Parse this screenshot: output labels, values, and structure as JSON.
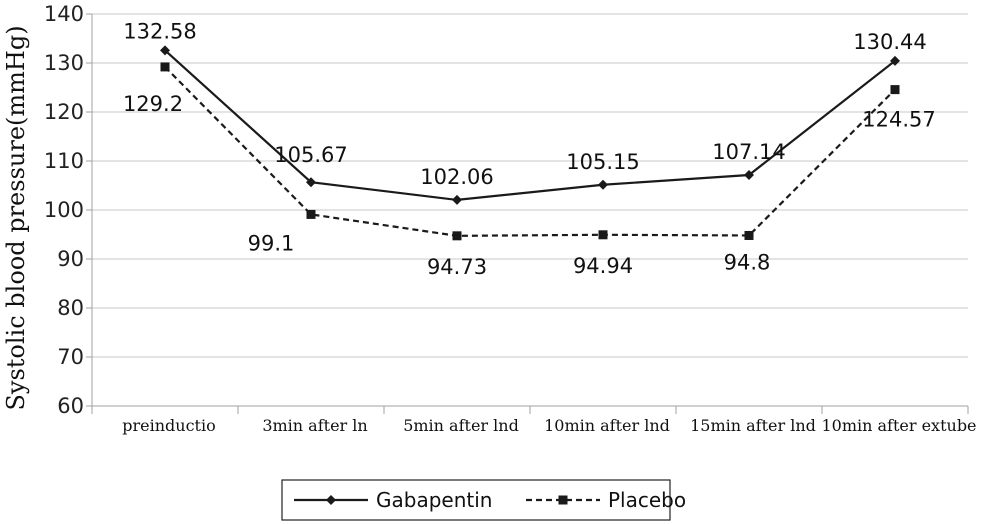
{
  "chart_data": {
    "type": "line",
    "ylabel": "Systolic blood pressure(mmHg)",
    "xlabel": "",
    "ylim": [
      60,
      140
    ],
    "yticks": [
      60,
      70,
      80,
      90,
      100,
      110,
      120,
      130,
      140
    ],
    "grid": true,
    "legend_position": "bottom",
    "categories": [
      "preinductio",
      "3min after ln",
      "5min after lnd",
      "10min after lnd",
      "15min after lnd",
      "10min after extube"
    ],
    "series": [
      {
        "name": "Gabapentin",
        "values": [
          132.58,
          105.67,
          102.06,
          105.15,
          107.14,
          130.44
        ],
        "labels": [
          "132.58",
          "105.67",
          "102.06",
          "105.15",
          "107.14",
          "130.44"
        ],
        "line_style": "solid",
        "marker": "diamond",
        "color": "#1a1a1a"
      },
      {
        "name": "Placebo",
        "values": [
          129.2,
          99.1,
          94.73,
          94.94,
          94.8,
          124.57
        ],
        "labels": [
          "129.2",
          "99.1",
          "94.73",
          "94.94",
          "94.8",
          "124.57"
        ],
        "line_style": "dashed",
        "marker": "square",
        "color": "#1a1a1a"
      }
    ]
  }
}
